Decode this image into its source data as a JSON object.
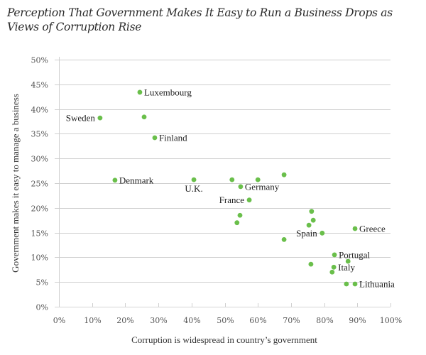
{
  "chart_data": {
    "type": "scatter",
    "title": "Perception That Government Makes It Easy to Run a Business Drops as Views of Corruption Rise",
    "xlabel": "Corruption is widespread in country’s government",
    "ylabel": "Government makes it easy to manage a business",
    "xlim": [
      0,
      100
    ],
    "ylim": [
      0,
      50
    ],
    "xticks": [
      0,
      10,
      20,
      30,
      40,
      50,
      60,
      70,
      80,
      90,
      100
    ],
    "yticks": [
      0,
      5,
      10,
      15,
      20,
      25,
      30,
      35,
      40,
      45,
      50
    ],
    "tick_suffix": "%",
    "grid": "horizontal",
    "color": "#6abf4b",
    "points": [
      {
        "x": 24.4,
        "y": 43.4,
        "label": "Luxembourg",
        "label_pos": "right"
      },
      {
        "x": 12.4,
        "y": 38.2,
        "label": "Sweden",
        "label_pos": "left"
      },
      {
        "x": 25.7,
        "y": 38.4,
        "label": ""
      },
      {
        "x": 28.9,
        "y": 34.2,
        "label": "Finland",
        "label_pos": "right"
      },
      {
        "x": 16.9,
        "y": 25.6,
        "label": "Denmark",
        "label_pos": "right"
      },
      {
        "x": 40.7,
        "y": 25.7,
        "label": "U.K.",
        "label_pos": "below"
      },
      {
        "x": 52.2,
        "y": 25.7,
        "label": ""
      },
      {
        "x": 60.0,
        "y": 25.7,
        "label": ""
      },
      {
        "x": 67.9,
        "y": 26.7,
        "label": ""
      },
      {
        "x": 54.8,
        "y": 24.3,
        "label": "Germany",
        "label_pos": "right"
      },
      {
        "x": 57.4,
        "y": 21.6,
        "label": "France",
        "label_pos": "left"
      },
      {
        "x": 54.6,
        "y": 18.5,
        "label": ""
      },
      {
        "x": 53.7,
        "y": 17.0,
        "label": ""
      },
      {
        "x": 67.9,
        "y": 13.6,
        "label": ""
      },
      {
        "x": 76.2,
        "y": 19.3,
        "label": ""
      },
      {
        "x": 76.7,
        "y": 17.5,
        "label": ""
      },
      {
        "x": 75.4,
        "y": 16.5,
        "label": ""
      },
      {
        "x": 79.4,
        "y": 14.9,
        "label": "Spain",
        "label_pos": "left"
      },
      {
        "x": 89.3,
        "y": 15.8,
        "label": "Greece",
        "label_pos": "right"
      },
      {
        "x": 83.1,
        "y": 10.5,
        "label": "Portugal",
        "label_pos": "right"
      },
      {
        "x": 87.2,
        "y": 9.2,
        "label": ""
      },
      {
        "x": 76.0,
        "y": 8.6,
        "label": ""
      },
      {
        "x": 82.9,
        "y": 8.0,
        "label": "Italy",
        "label_pos": "right"
      },
      {
        "x": 82.4,
        "y": 7.0,
        "label": ""
      },
      {
        "x": 86.7,
        "y": 4.6,
        "label": ""
      },
      {
        "x": 89.3,
        "y": 4.6,
        "label": "Lithuania",
        "label_pos": "right"
      }
    ]
  }
}
